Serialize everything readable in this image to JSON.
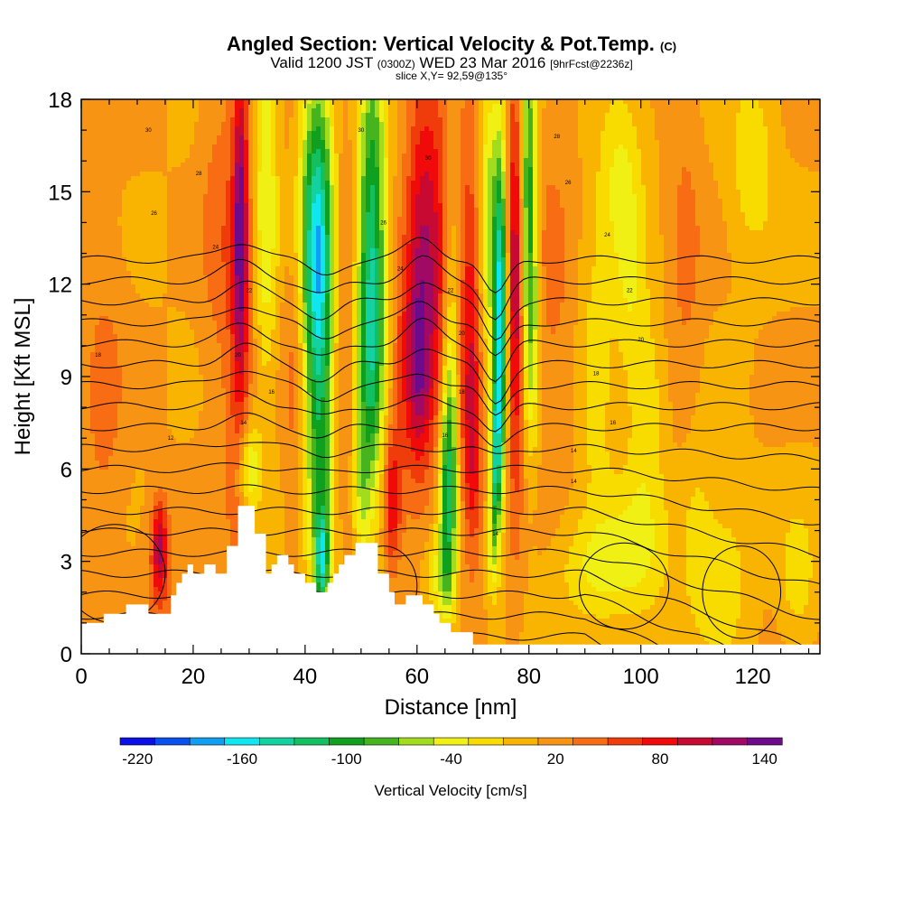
{
  "chart_data": {
    "type": "heatmap",
    "title": "Angled Section: Vertical Velocity & Pot.Temp.",
    "title_unit": "(C)",
    "subtitle": {
      "valid": "Valid 1200 JST",
      "utc": "(0300Z)",
      "date": "WED 23 Mar 2016",
      "fcst": "[9hrFcst@2236z]"
    },
    "slice_label": "slice X,Y= 92,59@135°",
    "xlabel": "Distance [nm]",
    "ylabel": "Height [Kft MSL]",
    "xlim": [
      0,
      132
    ],
    "ylim": [
      0,
      18
    ],
    "x_ticks": [
      "0",
      "20",
      "40",
      "60",
      "80",
      "100",
      "120"
    ],
    "y_ticks": [
      "0",
      "3",
      "6",
      "9",
      "12",
      "15",
      "18"
    ],
    "colorbar": {
      "label": "Vertical Velocity [cm/s]",
      "tick_labels": [
        "-220",
        "-160",
        "-100",
        "-40",
        "20",
        "80",
        "140"
      ],
      "levels": [
        -230,
        -210,
        -190,
        -170,
        -150,
        -130,
        -110,
        -90,
        -70,
        -50,
        -30,
        -10,
        10,
        30,
        50,
        70,
        90,
        110,
        130,
        150
      ],
      "colors": [
        "#0a10e6",
        "#0a50f0",
        "#0f9ef0",
        "#10e6f0",
        "#14d2a0",
        "#12c060",
        "#10a020",
        "#46b41e",
        "#a2dc1e",
        "#f0f014",
        "#f8dc00",
        "#f8b400",
        "#f89414",
        "#f86c14",
        "#f03c0a",
        "#f00a0a",
        "#c80a32",
        "#a00a64",
        "#6e0a8c"
      ]
    },
    "background_level": 10,
    "terrain": [
      [
        0,
        1
      ],
      [
        4,
        1
      ],
      [
        4,
        1.3
      ],
      [
        8,
        1.3
      ],
      [
        8,
        1.6
      ],
      [
        12,
        1.6
      ],
      [
        12,
        1.3
      ],
      [
        16,
        1.3
      ],
      [
        16,
        1.9
      ],
      [
        17,
        1.9
      ],
      [
        17,
        2.3
      ],
      [
        18,
        2.3
      ],
      [
        18,
        2.6
      ],
      [
        19,
        2.6
      ],
      [
        19,
        2.9
      ],
      [
        20,
        2.9
      ],
      [
        20,
        2.6
      ],
      [
        22,
        2.6
      ],
      [
        22,
        2.9
      ],
      [
        24,
        2.9
      ],
      [
        24,
        2.6
      ],
      [
        26,
        2.6
      ],
      [
        26,
        3.5
      ],
      [
        28,
        3.5
      ],
      [
        28,
        4.8
      ],
      [
        31,
        4.8
      ],
      [
        31,
        3.9
      ],
      [
        33,
        3.9
      ],
      [
        33,
        2.6
      ],
      [
        34,
        2.6
      ],
      [
        34,
        2.9
      ],
      [
        35,
        2.9
      ],
      [
        35,
        3.2
      ],
      [
        37,
        3.2
      ],
      [
        37,
        2.9
      ],
      [
        38,
        2.9
      ],
      [
        38,
        2.6
      ],
      [
        40,
        2.6
      ],
      [
        40,
        2.3
      ],
      [
        42,
        2.3
      ],
      [
        42,
        2.0
      ],
      [
        44,
        2.0
      ],
      [
        44,
        2.3
      ],
      [
        45,
        2.3
      ],
      [
        45,
        2.6
      ],
      [
        46,
        2.6
      ],
      [
        46,
        2.9
      ],
      [
        47,
        2.9
      ],
      [
        47,
        3.2
      ],
      [
        49,
        3.2
      ],
      [
        49,
        3.6
      ],
      [
        53,
        3.6
      ],
      [
        53,
        2.6
      ],
      [
        55,
        2.6
      ],
      [
        55,
        2.0
      ],
      [
        56,
        2.0
      ],
      [
        56,
        1.6
      ],
      [
        58,
        1.6
      ],
      [
        58,
        1.9
      ],
      [
        61,
        1.9
      ],
      [
        61,
        1.6
      ],
      [
        63,
        1.6
      ],
      [
        63,
        1.3
      ],
      [
        64,
        1.3
      ],
      [
        64,
        1.0
      ],
      [
        66,
        1.0
      ],
      [
        66,
        0.7
      ],
      [
        70,
        0.7
      ],
      [
        70,
        0.3
      ],
      [
        132,
        0.3
      ]
    ],
    "features": [
      {
        "x": 14,
        "y": 3.5,
        "w": 1.3,
        "h": 1.5,
        "v": 95
      },
      {
        "x": 14,
        "y": 2.2,
        "w": 3,
        "h": 2.5,
        "v": 40
      },
      {
        "x": 4,
        "y": 8,
        "w": 4,
        "h": 6,
        "v": 35
      },
      {
        "x": 28.5,
        "y": 14,
        "w": 1.2,
        "h": 5,
        "v": 110
      },
      {
        "x": 28,
        "y": 11,
        "w": 2.5,
        "h": 8,
        "v": 60
      },
      {
        "x": 24,
        "y": 14,
        "w": 3,
        "h": 6,
        "v": 35
      },
      {
        "x": 33,
        "y": 15,
        "w": 2,
        "h": 6,
        "v": -50
      },
      {
        "x": 30,
        "y": 6,
        "w": 2,
        "h": 1.5,
        "v": -60
      },
      {
        "x": 42,
        "y": 14,
        "w": 3,
        "h": 5,
        "v": -110
      },
      {
        "x": 42.5,
        "y": 10,
        "w": 2.5,
        "h": 6,
        "v": -80
      },
      {
        "x": 43,
        "y": 4,
        "w": 2.5,
        "h": 4,
        "v": -45
      },
      {
        "x": 43,
        "y": 3,
        "w": 1,
        "h": 1.5,
        "v": -95
      },
      {
        "x": 38,
        "y": 9,
        "w": 2,
        "h": 6,
        "v": 35
      },
      {
        "x": 47,
        "y": 11,
        "w": 2,
        "h": 7,
        "v": 40
      },
      {
        "x": 52,
        "y": 14,
        "w": 2.5,
        "h": 6,
        "v": -100
      },
      {
        "x": 51.5,
        "y": 9,
        "w": 2.5,
        "h": 5,
        "v": -70
      },
      {
        "x": 50,
        "y": 5,
        "w": 1.5,
        "h": 2,
        "v": -30
      },
      {
        "x": 55.5,
        "y": 5,
        "w": 1.5,
        "h": 2.3,
        "v": 80
      },
      {
        "x": 57,
        "y": 9,
        "w": 2,
        "h": 4,
        "v": 40
      },
      {
        "x": 61,
        "y": 12.5,
        "w": 3,
        "h": 6,
        "v": 110
      },
      {
        "x": 60,
        "y": 9,
        "w": 2.2,
        "h": 3,
        "v": 70
      },
      {
        "x": 64,
        "y": 13,
        "w": 2,
        "h": 5,
        "v": 50
      },
      {
        "x": 65.5,
        "y": 5,
        "w": 1.5,
        "h": 3.5,
        "v": -100
      },
      {
        "x": 66,
        "y": 9,
        "w": 1.5,
        "h": 4,
        "v": -50
      },
      {
        "x": 64,
        "y": 2.5,
        "w": 2.5,
        "h": 1.5,
        "v": -35
      },
      {
        "x": 69.5,
        "y": 11,
        "w": 2,
        "h": 6,
        "v": 85
      },
      {
        "x": 70,
        "y": 6,
        "w": 1.8,
        "h": 3,
        "v": 60
      },
      {
        "x": 75,
        "y": 11,
        "w": 1.2,
        "h": 5,
        "v": -150
      },
      {
        "x": 74,
        "y": 6.5,
        "w": 1,
        "h": 2.5,
        "v": -110
      },
      {
        "x": 73.5,
        "y": 3.5,
        "w": 1,
        "h": 2,
        "v": -40
      },
      {
        "x": 73,
        "y": 14,
        "w": 2,
        "h": 5,
        "v": -60
      },
      {
        "x": 77.5,
        "y": 12,
        "w": 1.5,
        "h": 7,
        "v": 110
      },
      {
        "x": 80,
        "y": 15,
        "w": 1.5,
        "h": 5,
        "v": -100
      },
      {
        "x": 80.5,
        "y": 10,
        "w": 1.5,
        "h": 4,
        "v": -40
      },
      {
        "x": 84,
        "y": 12,
        "w": 4,
        "h": 6,
        "v": 35
      },
      {
        "x": 92,
        "y": 2.8,
        "w": 7,
        "h": 1.8,
        "v": -30
      },
      {
        "x": 96,
        "y": 16,
        "w": 4,
        "h": 3,
        "v": -30
      },
      {
        "x": 98,
        "y": 12,
        "w": 3,
        "h": 3.5,
        "v": -25
      },
      {
        "x": 92,
        "y": 9,
        "w": 3,
        "h": 4,
        "v": -25
      },
      {
        "x": 101,
        "y": 8,
        "w": 3,
        "h": 3,
        "v": -25
      },
      {
        "x": 108,
        "y": 13,
        "w": 3,
        "h": 6,
        "v": 35
      },
      {
        "x": 115,
        "y": 2.5,
        "w": 4,
        "h": 2.5,
        "v": -25
      },
      {
        "x": 128,
        "y": 2.5,
        "w": 3,
        "h": 2,
        "v": -25
      },
      {
        "x": 110,
        "y": 4,
        "w": 3,
        "h": 3,
        "v": -20
      },
      {
        "x": 100,
        "y": 3.5,
        "w": 6,
        "h": 2.5,
        "v": -25
      },
      {
        "x": 120,
        "y": 16,
        "w": 4,
        "h": 3,
        "v": -25
      }
    ],
    "isentropes": {
      "levels": [
        -4,
        -2,
        0,
        2,
        4,
        6,
        8,
        10,
        12,
        14,
        16,
        18,
        20,
        22,
        24,
        26,
        28,
        30,
        32
      ],
      "labels": [
        {
          "x": 34,
          "y": 8.5,
          "text": "16"
        },
        {
          "x": 29,
          "y": 7.5,
          "text": "14"
        },
        {
          "x": 16,
          "y": 7.0,
          "text": "12"
        },
        {
          "x": 3,
          "y": 9.7,
          "text": "18"
        },
        {
          "x": 28,
          "y": 9.7,
          "text": "20"
        },
        {
          "x": 30,
          "y": 11.8,
          "text": "22"
        },
        {
          "x": 24,
          "y": 13.2,
          "text": "24"
        },
        {
          "x": 13,
          "y": 14.3,
          "text": "26"
        },
        {
          "x": 21,
          "y": 15.6,
          "text": "28"
        },
        {
          "x": 12,
          "y": 17.0,
          "text": "30"
        },
        {
          "x": 50,
          "y": 17.0,
          "text": "30"
        },
        {
          "x": 54,
          "y": 14.0,
          "text": "26"
        },
        {
          "x": 57,
          "y": 12.5,
          "text": "24"
        },
        {
          "x": 62,
          "y": 16.1,
          "text": "30"
        },
        {
          "x": 66,
          "y": 11.8,
          "text": "22"
        },
        {
          "x": 68,
          "y": 10.4,
          "text": "20"
        },
        {
          "x": 68,
          "y": 8.5,
          "text": "18"
        },
        {
          "x": 65,
          "y": 7.1,
          "text": "16"
        },
        {
          "x": 74,
          "y": 3.9,
          "text": "14"
        },
        {
          "x": 85,
          "y": 16.8,
          "text": "28"
        },
        {
          "x": 87,
          "y": 15.3,
          "text": "26"
        },
        {
          "x": 94,
          "y": 13.6,
          "text": "24"
        },
        {
          "x": 98,
          "y": 11.8,
          "text": "22"
        },
        {
          "x": 100,
          "y": 10.2,
          "text": "20"
        },
        {
          "x": 92,
          "y": 9.1,
          "text": "18"
        },
        {
          "x": 95,
          "y": 7.5,
          "text": "16"
        },
        {
          "x": 88,
          "y": 6.6,
          "text": "14"
        },
        {
          "x": 88,
          "y": 5.6,
          "text": "14"
        }
      ]
    }
  }
}
